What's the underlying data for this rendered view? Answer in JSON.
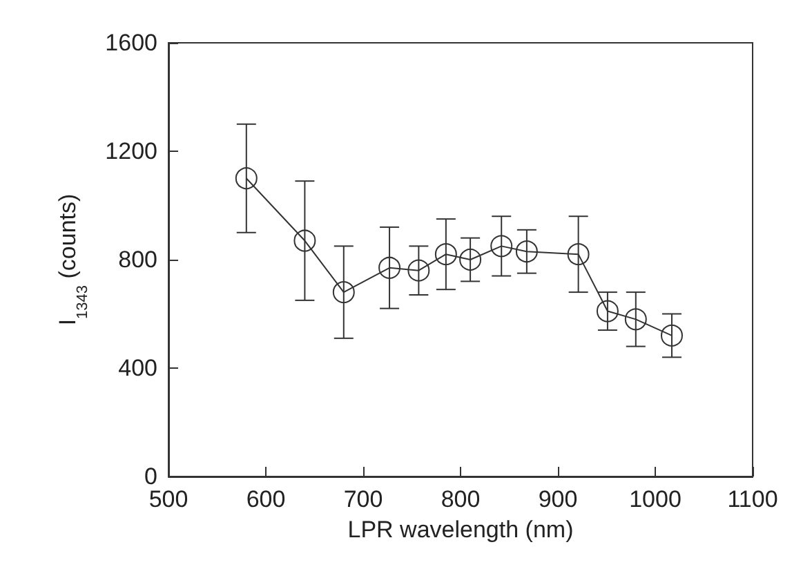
{
  "chart_data": {
    "type": "line",
    "xlabel": "LPR wavelength (nm)",
    "ylabel": "I$_{1343}$ (counts)",
    "x": [
      580,
      640,
      680,
      727,
      757,
      785,
      810,
      842,
      868,
      921,
      951,
      980,
      1017
    ],
    "series": [
      {
        "color": "#333333",
        "values": [
          1100,
          870,
          680,
          770,
          760,
          820,
          800,
          850,
          830,
          820,
          610,
          580,
          520
        ],
        "errors": [
          [
            900,
            1300
          ],
          [
            650,
            1090
          ],
          [
            510,
            850
          ],
          [
            620,
            920
          ],
          [
            670,
            850
          ],
          [
            690,
            950
          ],
          [
            720,
            880
          ],
          [
            740,
            960
          ],
          [
            750,
            910
          ],
          [
            680,
            960
          ],
          [
            540,
            680
          ],
          [
            480,
            680
          ],
          [
            440,
            600
          ]
        ]
      }
    ],
    "xlim": [
      500,
      1100
    ],
    "xticks": [
      500,
      600,
      700,
      800,
      900,
      1000,
      1100
    ],
    "ylim": [
      0,
      1600
    ],
    "yticks": [
      0,
      400,
      800,
      1200,
      1600
    ],
    "grid": false,
    "marker": "circle",
    "line_style": "solid"
  }
}
